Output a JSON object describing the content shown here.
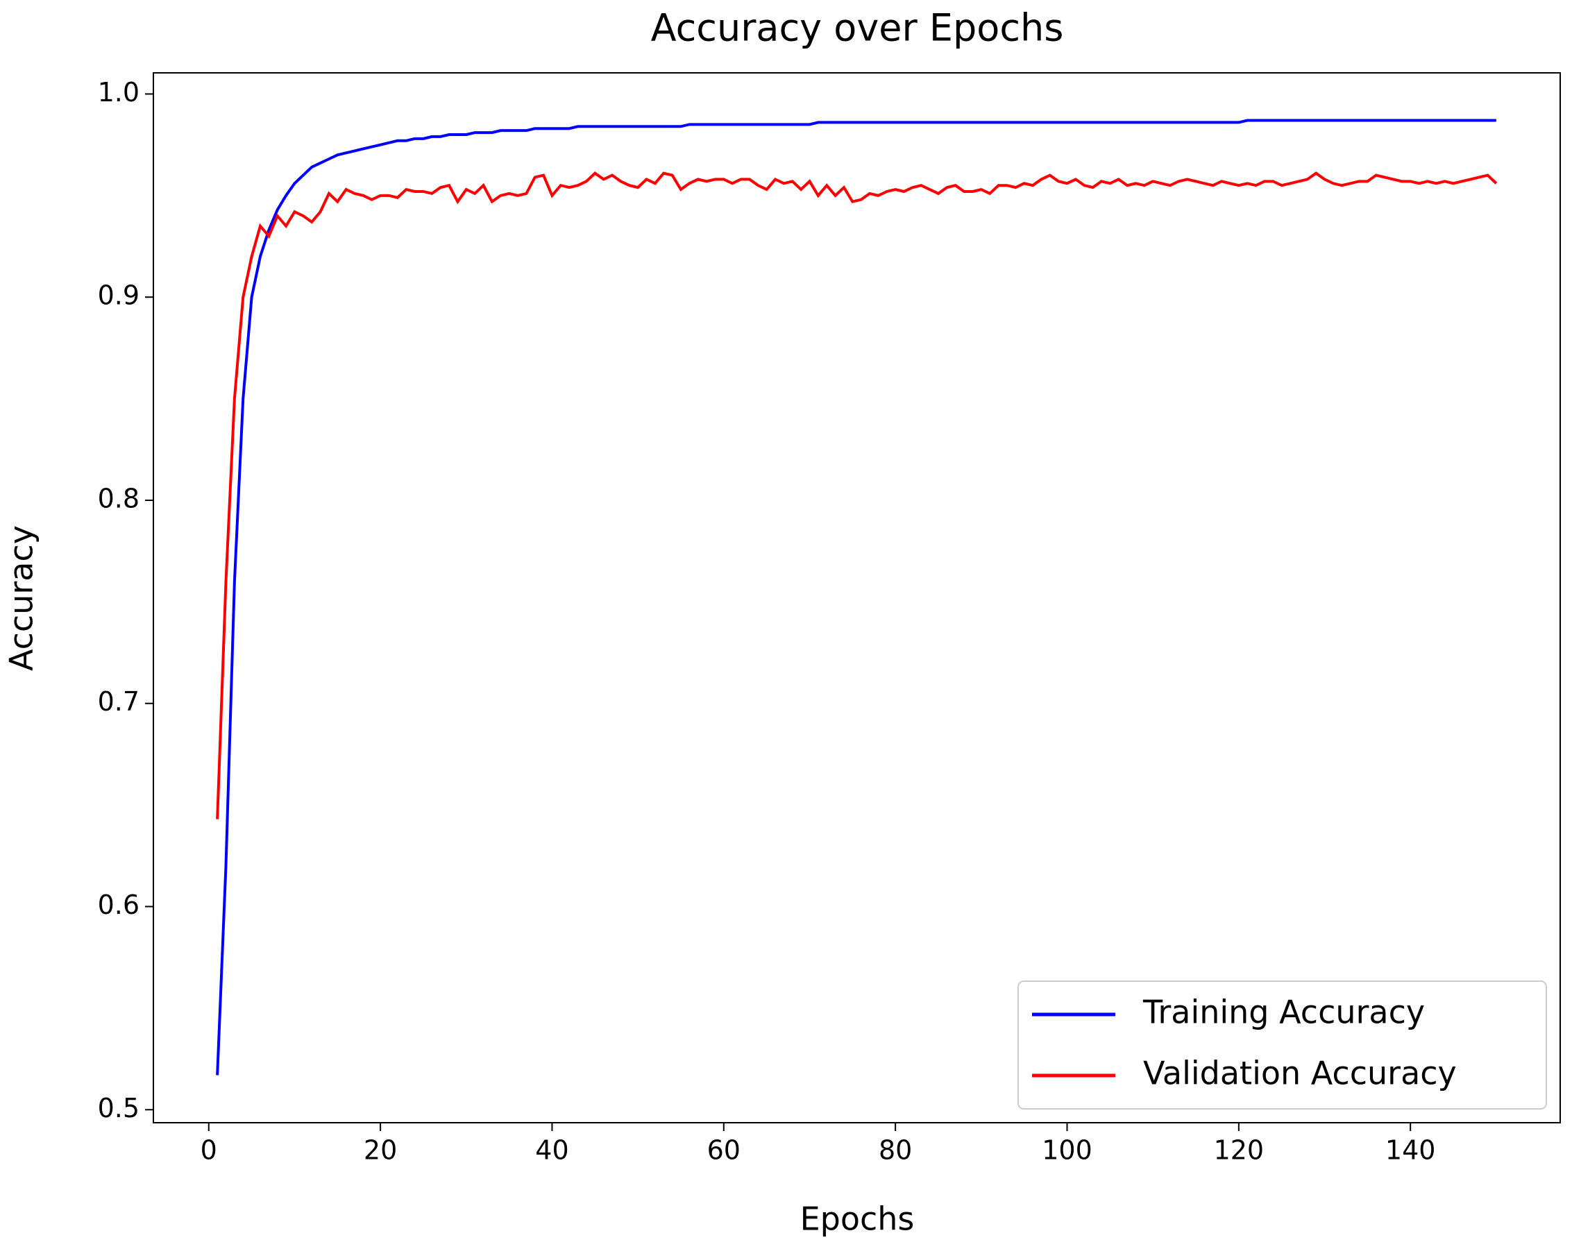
{
  "chart_data": {
    "type": "line",
    "title": "Accuracy over Epochs",
    "x_label": "Epochs",
    "y_label": "Accuracy",
    "x": [
      1,
      2,
      3,
      4,
      5,
      6,
      7,
      8,
      9,
      10,
      11,
      12,
      13,
      14,
      15,
      16,
      17,
      18,
      19,
      20,
      21,
      22,
      23,
      24,
      25,
      26,
      27,
      28,
      29,
      30,
      31,
      32,
      33,
      34,
      35,
      36,
      37,
      38,
      39,
      40,
      41,
      42,
      43,
      44,
      45,
      46,
      47,
      48,
      49,
      50,
      51,
      52,
      53,
      54,
      55,
      56,
      57,
      58,
      59,
      60,
      61,
      62,
      63,
      64,
      65,
      66,
      67,
      68,
      69,
      70,
      71,
      72,
      73,
      74,
      75,
      76,
      77,
      78,
      79,
      80,
      81,
      82,
      83,
      84,
      85,
      86,
      87,
      88,
      89,
      90,
      91,
      92,
      93,
      94,
      95,
      96,
      97,
      98,
      99,
      100,
      101,
      102,
      103,
      104,
      105,
      106,
      107,
      108,
      109,
      110,
      111,
      112,
      113,
      114,
      115,
      116,
      117,
      118,
      119,
      120,
      121,
      122,
      123,
      124,
      125,
      126,
      127,
      128,
      129,
      130,
      131,
      132,
      133,
      134,
      135,
      136,
      137,
      138,
      139,
      140,
      141,
      142,
      143,
      144,
      145,
      146,
      147,
      148,
      149,
      150
    ],
    "series": [
      {
        "name": "Training Accuracy",
        "color": "#0000ff",
        "values": [
          0.517,
          0.62,
          0.76,
          0.85,
          0.9,
          0.92,
          0.933,
          0.943,
          0.95,
          0.956,
          0.96,
          0.964,
          0.966,
          0.968,
          0.97,
          0.971,
          0.972,
          0.973,
          0.974,
          0.975,
          0.976,
          0.977,
          0.977,
          0.978,
          0.978,
          0.979,
          0.979,
          0.98,
          0.98,
          0.98,
          0.981,
          0.981,
          0.981,
          0.982,
          0.982,
          0.982,
          0.982,
          0.983,
          0.983,
          0.983,
          0.983,
          0.983,
          0.984,
          0.984,
          0.984,
          0.984,
          0.984,
          0.984,
          0.984,
          0.984,
          0.984,
          0.984,
          0.984,
          0.984,
          0.984,
          0.985,
          0.985,
          0.985,
          0.985,
          0.985,
          0.985,
          0.985,
          0.985,
          0.985,
          0.985,
          0.985,
          0.985,
          0.985,
          0.985,
          0.985,
          0.986,
          0.986,
          0.986,
          0.986,
          0.986,
          0.986,
          0.986,
          0.986,
          0.986,
          0.986,
          0.986,
          0.986,
          0.986,
          0.986,
          0.986,
          0.986,
          0.986,
          0.986,
          0.986,
          0.986,
          0.986,
          0.986,
          0.986,
          0.986,
          0.986,
          0.986,
          0.986,
          0.986,
          0.986,
          0.986,
          0.986,
          0.986,
          0.986,
          0.986,
          0.986,
          0.986,
          0.986,
          0.986,
          0.986,
          0.986,
          0.986,
          0.986,
          0.986,
          0.986,
          0.986,
          0.986,
          0.986,
          0.986,
          0.986,
          0.986,
          0.987,
          0.987,
          0.987,
          0.987,
          0.987,
          0.987,
          0.987,
          0.987,
          0.987,
          0.987,
          0.987,
          0.987,
          0.987,
          0.987,
          0.987,
          0.987,
          0.987,
          0.987,
          0.987,
          0.987,
          0.987,
          0.987,
          0.987,
          0.987,
          0.987,
          0.987,
          0.987,
          0.987,
          0.987,
          0.987
        ]
      },
      {
        "name": "Validation Accuracy",
        "color": "#ff0000",
        "values": [
          0.643,
          0.76,
          0.85,
          0.9,
          0.92,
          0.935,
          0.93,
          0.94,
          0.935,
          0.942,
          0.94,
          0.937,
          0.942,
          0.951,
          0.947,
          0.953,
          0.951,
          0.95,
          0.948,
          0.95,
          0.95,
          0.949,
          0.953,
          0.952,
          0.952,
          0.951,
          0.954,
          0.955,
          0.947,
          0.953,
          0.951,
          0.955,
          0.947,
          0.95,
          0.951,
          0.95,
          0.951,
          0.959,
          0.96,
          0.95,
          0.955,
          0.954,
          0.955,
          0.957,
          0.961,
          0.958,
          0.96,
          0.957,
          0.955,
          0.954,
          0.958,
          0.956,
          0.961,
          0.96,
          0.953,
          0.956,
          0.958,
          0.957,
          0.958,
          0.958,
          0.956,
          0.958,
          0.958,
          0.955,
          0.953,
          0.958,
          0.956,
          0.957,
          0.953,
          0.957,
          0.95,
          0.955,
          0.95,
          0.954,
          0.947,
          0.948,
          0.951,
          0.95,
          0.952,
          0.953,
          0.952,
          0.954,
          0.955,
          0.953,
          0.951,
          0.954,
          0.955,
          0.952,
          0.952,
          0.953,
          0.951,
          0.955,
          0.955,
          0.954,
          0.956,
          0.955,
          0.958,
          0.96,
          0.957,
          0.956,
          0.958,
          0.955,
          0.954,
          0.957,
          0.956,
          0.958,
          0.955,
          0.956,
          0.955,
          0.957,
          0.956,
          0.955,
          0.957,
          0.958,
          0.957,
          0.956,
          0.955,
          0.957,
          0.956,
          0.955,
          0.956,
          0.955,
          0.957,
          0.957,
          0.955,
          0.956,
          0.957,
          0.958,
          0.961,
          0.958,
          0.956,
          0.955,
          0.956,
          0.957,
          0.957,
          0.96,
          0.959,
          0.958,
          0.957,
          0.957,
          0.956,
          0.957,
          0.956,
          0.957,
          0.956,
          0.957,
          0.958,
          0.959,
          0.96,
          0.956
        ]
      }
    ],
    "xlim": [
      -6.45,
      157.45
    ],
    "ylim": [
      0.4936,
      1.0104
    ],
    "xticks": [
      0,
      20,
      40,
      60,
      80,
      100,
      120,
      140
    ],
    "yticks": [
      0.5,
      0.6,
      0.7,
      0.8,
      0.9,
      {
        "value": 1,
        "label": "1.0"
      }
    ],
    "legend": "lower right"
  }
}
